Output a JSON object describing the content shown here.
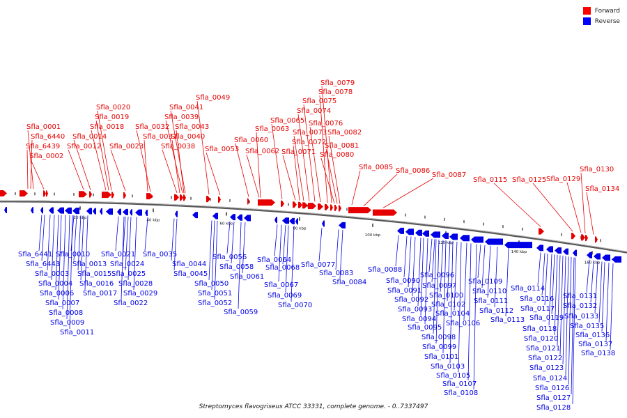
{
  "caption": "Streptomyces flavogriseus ATCC 33331, complete genome. - 0..7337497",
  "legend": [
    {
      "label": "Forward",
      "color": "#ff0000"
    },
    {
      "label": "Reverse",
      "color": "#0000ff"
    }
  ],
  "colors": {
    "forward": "#e60000",
    "reverse": "#0000e6",
    "backbone": "#7a7a7a",
    "tick": "#000000"
  },
  "ticks": [
    {
      "label": "20 kbp",
      "kbp": 20
    },
    {
      "label": "40 kbp",
      "kbp": 40
    },
    {
      "label": "60 kbp",
      "kbp": 60
    },
    {
      "label": "80 kbp",
      "kbp": 80
    },
    {
      "label": "100 kbp",
      "kbp": 100
    },
    {
      "label": "120 kbp",
      "kbp": 120
    },
    {
      "label": "140 kbp",
      "kbp": 140
    },
    {
      "label": "160 kbp",
      "kbp": 160
    }
  ],
  "forward_labels": [
    "Sfla_6439",
    "Sfla_6440",
    "Sfla_0001",
    "Sfla_0002",
    "Sfla_0012",
    "Sfla_0014",
    "Sfla_0018",
    "Sfla_0019",
    "Sfla_0020",
    "Sfla_0023",
    "Sfla_0031",
    "Sfla_0032",
    "Sfla_0038",
    "Sfla_0040",
    "Sfla_0043",
    "Sfla_0039",
    "Sfla_0041",
    "Sfla_0049",
    "Sfla_0053",
    "Sfla_0060",
    "Sfla_0062",
    "Sfla_0063",
    "Sfla_0065",
    "Sfla_0071",
    "Sfla_0072",
    "Sfla_0073",
    "Sfla_0074",
    "Sfla_0075",
    "Sfla_0076",
    "Sfla_0078",
    "Sfla_0079",
    "Sfla_0080",
    "Sfla_0081",
    "Sfla_0082",
    "Sfla_0085",
    "Sfla_0086",
    "Sfla_0087",
    "Sfla_0115",
    "Sfla_0125",
    "Sfla_0129",
    "Sfla_0130",
    "Sfla_0134"
  ],
  "reverse_labels": [
    "Sfla_6441",
    "Sfla_6443",
    "Sfla_0003",
    "Sfla_0004",
    "Sfla_0006",
    "Sfla_0007",
    "Sfla_0008",
    "Sfla_0009",
    "Sfla_0011",
    "Sfla_0010",
    "Sfla_0013",
    "Sfla_0015",
    "Sfla_0016",
    "Sfla_0017",
    "Sfla_0021",
    "Sfla_0022",
    "Sfla_0024",
    "Sfla_0025",
    "Sfla_0028",
    "Sfla_0029",
    "Sfla_0035",
    "Sfla_0044",
    "Sfla_0045",
    "Sfla_0050",
    "Sfla_0051",
    "Sfla_0052",
    "Sfla_0056",
    "Sfla_0058",
    "Sfla_0059",
    "Sfla_0061",
    "Sfla_0064",
    "Sfla_0067",
    "Sfla_0068",
    "Sfla_0069",
    "Sfla_0070",
    "Sfla_0077",
    "Sfla_0083",
    "Sfla_0084",
    "Sfla_0088",
    "Sfla_0090",
    "Sfla_0091",
    "Sfla_0092",
    "Sfla_0093",
    "Sfla_0094",
    "Sfla_0095",
    "Sfla_0096",
    "Sfla_0097",
    "Sfla_0098",
    "Sfla_0099",
    "Sfla_0100",
    "Sfla_0101",
    "Sfla_0102",
    "Sfla_0103",
    "Sfla_0104",
    "Sfla_0105",
    "Sfla_0106",
    "Sfla_0107",
    "Sfla_0108",
    "Sfla_0109",
    "Sfla_0110",
    "Sfla_0111",
    "Sfla_0112",
    "Sfla_0113",
    "Sfla_0114",
    "Sfla_0116",
    "Sfla_0117",
    "Sfla_0118",
    "Sfla_0119",
    "Sfla_0120",
    "Sfla_0121",
    "Sfla_0122",
    "Sfla_0123",
    "Sfla_0124",
    "Sfla_0126",
    "Sfla_0127",
    "Sfla_0128",
    "Sfla_0131",
    "Sfla_0132",
    "Sfla_0133",
    "Sfla_0135",
    "Sfla_0136",
    "Sfla_0137",
    "Sfla_0138"
  ]
}
